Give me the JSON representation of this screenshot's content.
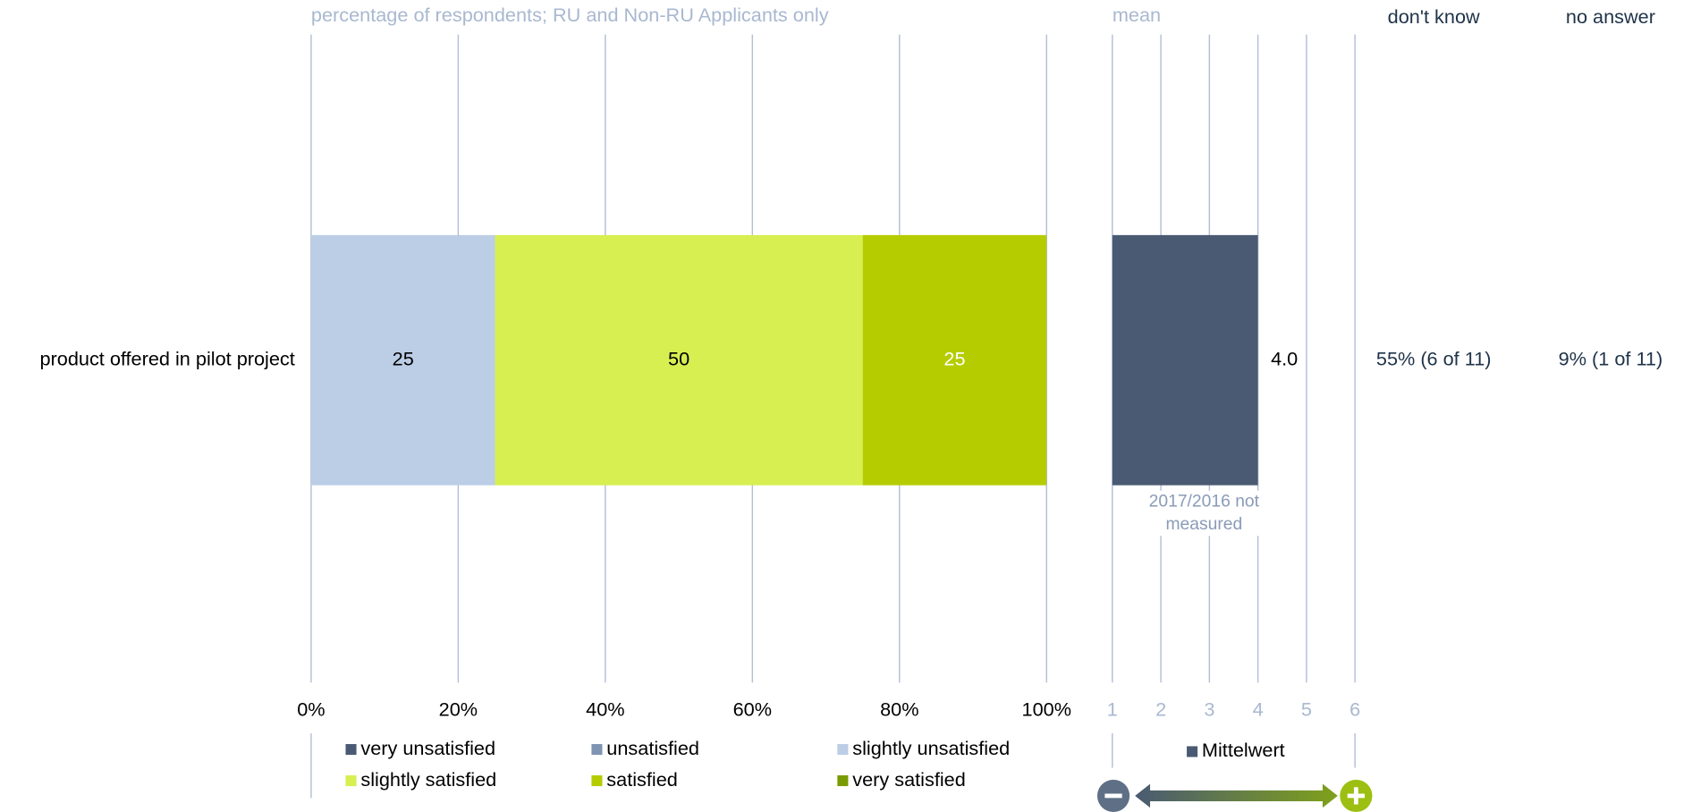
{
  "chart_data": [
    {
      "type": "stacked-bar",
      "subtitle": "percentage of respondents; RU and Non-RU Applicants only",
      "categories": [
        "product offered in pilot project"
      ],
      "series": [
        {
          "name": "very unsatisfied",
          "color": "#4a5a73",
          "values": [
            0
          ]
        },
        {
          "name": "unsatisfied",
          "color": "#7f93b3",
          "values": [
            0
          ]
        },
        {
          "name": "slightly unsatisfied",
          "color": "#bccde6",
          "values": [
            25
          ]
        },
        {
          "name": "slightly satisfied",
          "color": "#d7ef50",
          "values": [
            50
          ]
        },
        {
          "name": "satisfied",
          "color": "#b5cc00",
          "values": [
            25
          ]
        },
        {
          "name": "very satisfied",
          "color": "#7a9a01",
          "values": [
            0
          ]
        }
      ],
      "xlim": [
        0,
        100
      ],
      "xticks": [
        {
          "value": 0,
          "label": "0%"
        },
        {
          "value": 20,
          "label": "20%"
        },
        {
          "value": 40,
          "label": "40%"
        },
        {
          "value": 60,
          "label": "60%"
        },
        {
          "value": 80,
          "label": "80%"
        },
        {
          "value": 100,
          "label": "100%"
        }
      ],
      "grid": true
    },
    {
      "type": "bar",
      "title": "mean",
      "categories": [
        null
      ],
      "series": [
        {
          "name": "Mittelwert",
          "color": "#4a5a73",
          "values": [
            4
          ],
          "value_labels": [
            "4.0"
          ]
        }
      ],
      "xlim": [
        1,
        6
      ],
      "xticks": [
        1,
        2,
        3,
        4,
        5,
        6
      ],
      "grid": true,
      "annotation": "2017/2016 not measured"
    }
  ],
  "columns": [
    {
      "header": "don't know",
      "values": [
        "55% (6 of 11)"
      ]
    },
    {
      "header": "no answer",
      "values": [
        "9% (1 of 11)"
      ]
    }
  ]
}
